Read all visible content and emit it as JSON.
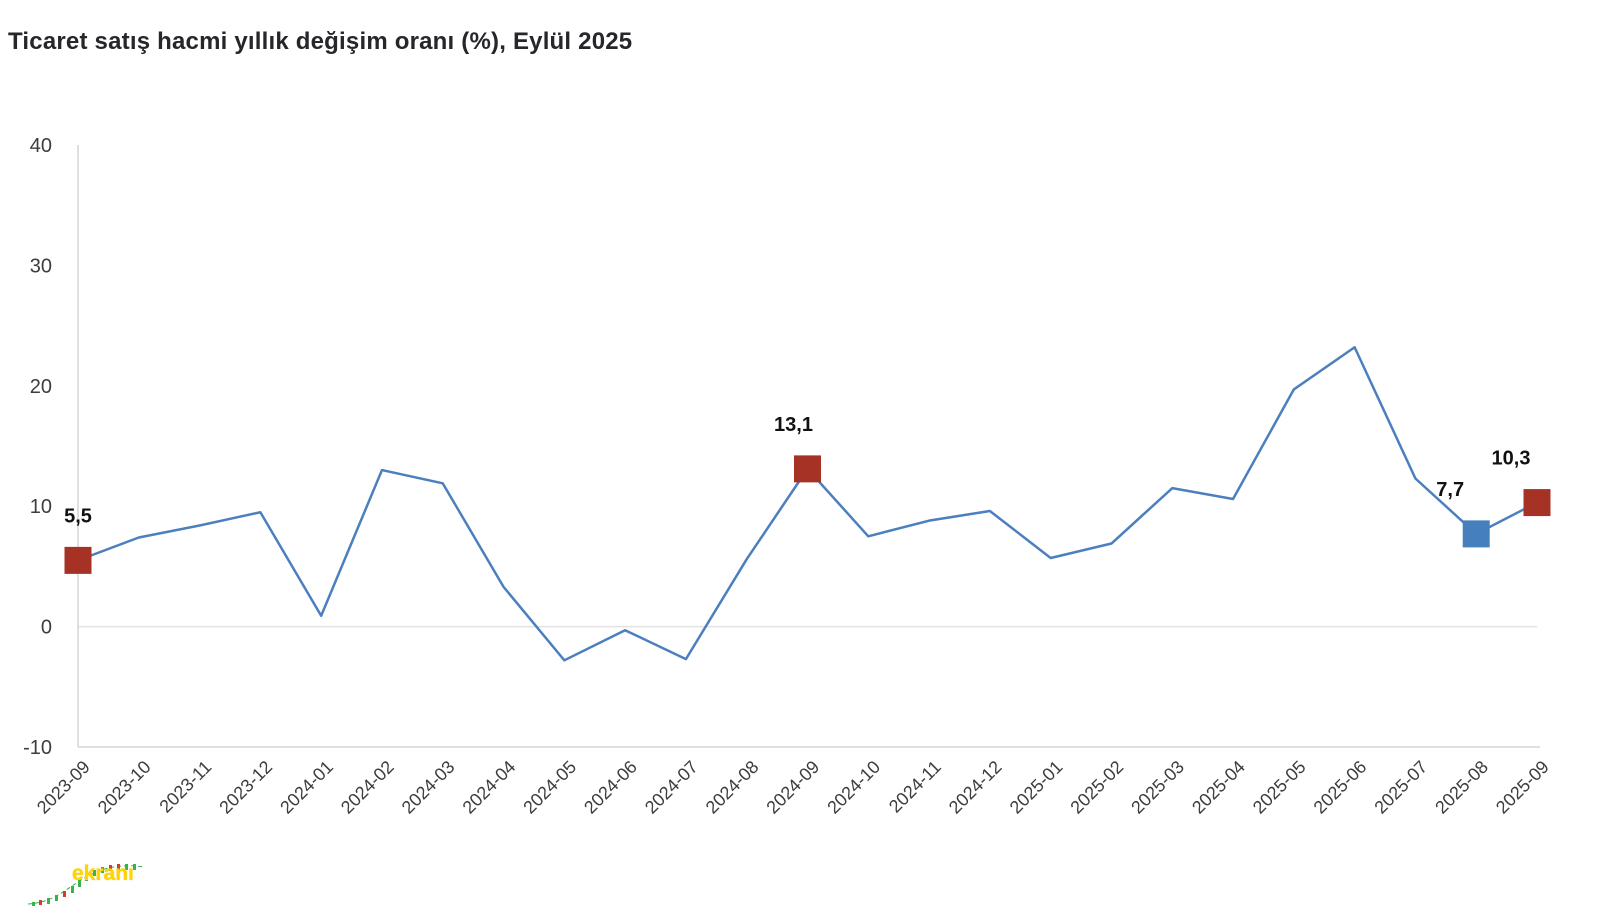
{
  "title": "Ticaret satış hacmi yıllık değişim oranı (%), Eylül 2025",
  "watermark": {
    "text": "ekranı",
    "color": "#ffd400"
  },
  "chart_data": {
    "type": "line",
    "title": "Ticaret satış hacmi yıllık değişim oranı (%), Eylül 2025",
    "xlabel": "",
    "ylabel": "",
    "ylim": [
      -10,
      40
    ],
    "yticks": [
      40,
      30,
      20,
      10,
      0,
      -10
    ],
    "grid": "horizontal zero line only",
    "legend": "none",
    "line_color": "#4c7fbe",
    "axis_color": "#d6d6d6",
    "zero_line_color": "#e2e2e2",
    "tick_color": "#3d3d3d",
    "categories": [
      "2023-09",
      "2023-10",
      "2023-11",
      "2023-12",
      "2024-01",
      "2024-02",
      "2024-03",
      "2024-04",
      "2024-05",
      "2024-06",
      "2024-07",
      "2024-08",
      "2024-09",
      "2024-10",
      "2024-11",
      "2024-12",
      "2025-01",
      "2025-02",
      "2025-03",
      "2025-04",
      "2025-05",
      "2025-06",
      "2025-07",
      "2025-08",
      "2025-09"
    ],
    "series": [
      {
        "name": "Ticaret satış hacmi yıllık değişim oranı (%)",
        "values": [
          5.5,
          7.4,
          8.4,
          9.5,
          0.9,
          13.0,
          11.9,
          3.3,
          -2.8,
          -0.3,
          -2.7,
          5.6,
          13.1,
          7.5,
          8.8,
          9.6,
          5.7,
          6.9,
          11.5,
          10.6,
          19.7,
          23.2,
          12.3,
          7.7,
          10.3
        ]
      }
    ],
    "highlights": [
      {
        "index": 0,
        "category": "2023-09",
        "value": 5.5,
        "label": "5,5",
        "color": "#a63226"
      },
      {
        "index": 12,
        "category": "2024-09",
        "value": 13.1,
        "label": "13,1",
        "color": "#a63226"
      },
      {
        "index": 23,
        "category": "2025-08",
        "value": 7.7,
        "label": "7,7",
        "color": "#4580bd"
      },
      {
        "index": 24,
        "category": "2025-09",
        "value": 10.3,
        "label": "10,3",
        "color": "#a63226"
      }
    ]
  }
}
